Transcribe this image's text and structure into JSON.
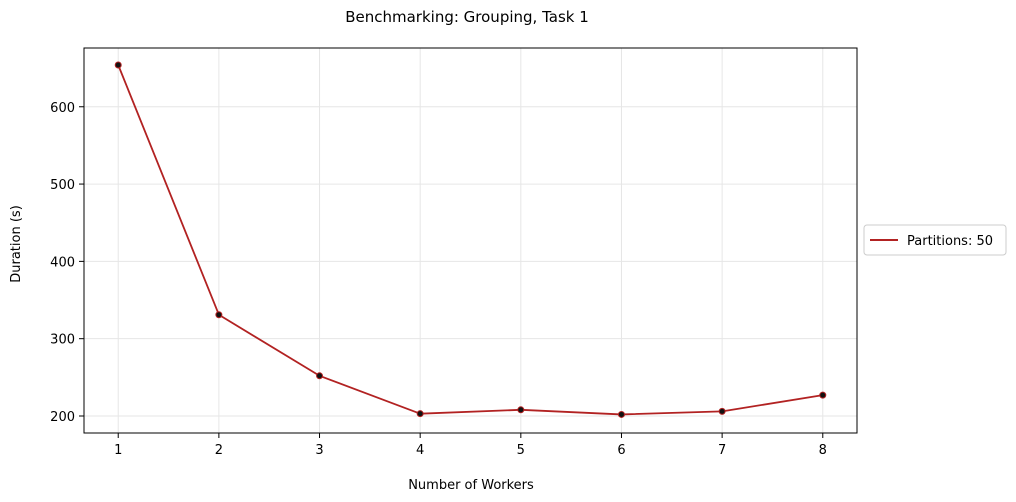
{
  "chart_data": {
    "type": "line",
    "title": "Benchmarking: Grouping, Task 1",
    "xlabel": "Number of Workers",
    "ylabel": "Duration (s)",
    "x": [
      1,
      2,
      3,
      4,
      5,
      6,
      7,
      8
    ],
    "xticks": [
      1,
      2,
      3,
      4,
      5,
      6,
      7,
      8
    ],
    "yticks": [
      200,
      300,
      400,
      500,
      600
    ],
    "xlim": [
      0.66,
      8.34
    ],
    "ylim": [
      178,
      676
    ],
    "grid": true,
    "legend_placement": "outside-right",
    "series": [
      {
        "name": "Partitions: 50",
        "color": "#b22222",
        "marker_color": "#111111",
        "values": [
          654,
          331,
          252,
          203,
          208,
          202,
          206,
          227
        ]
      }
    ]
  }
}
